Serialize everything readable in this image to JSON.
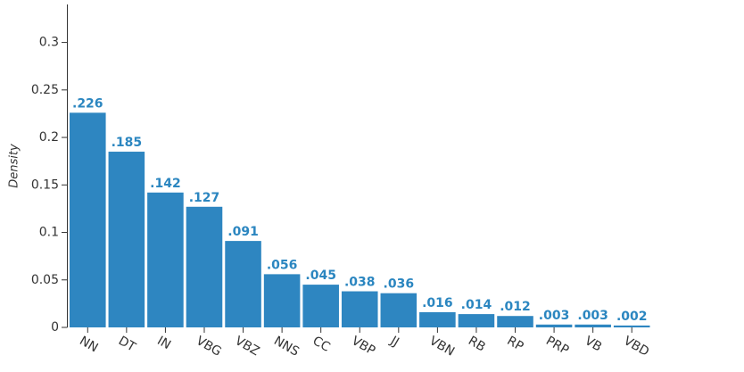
{
  "chart_data": {
    "type": "bar",
    "y_label": "Density",
    "categories": [
      "NN",
      "DT",
      "IN",
      "VBG",
      "VBZ",
      "NNS",
      "CC",
      "VBP",
      "JJ",
      "VBN",
      "RB",
      "RP",
      "PRP",
      "VB",
      "VBD"
    ],
    "values": [
      0.226,
      0.185,
      0.142,
      0.127,
      0.091,
      0.056,
      0.045,
      0.038,
      0.036,
      0.016,
      0.014,
      0.012,
      0.003,
      0.003,
      0.002
    ],
    "value_labels": [
      ".226",
      ".185",
      ".142",
      ".127",
      ".091",
      ".056",
      ".045",
      ".038",
      ".036",
      ".016",
      ".014",
      ".012",
      ".003",
      ".003",
      ".002"
    ],
    "color": "#2e86c1",
    "ylim": [
      0,
      0.34
    ],
    "yticks": [
      0,
      0.05,
      0.1,
      0.15,
      0.2,
      0.25,
      0.3
    ],
    "grid": false
  }
}
